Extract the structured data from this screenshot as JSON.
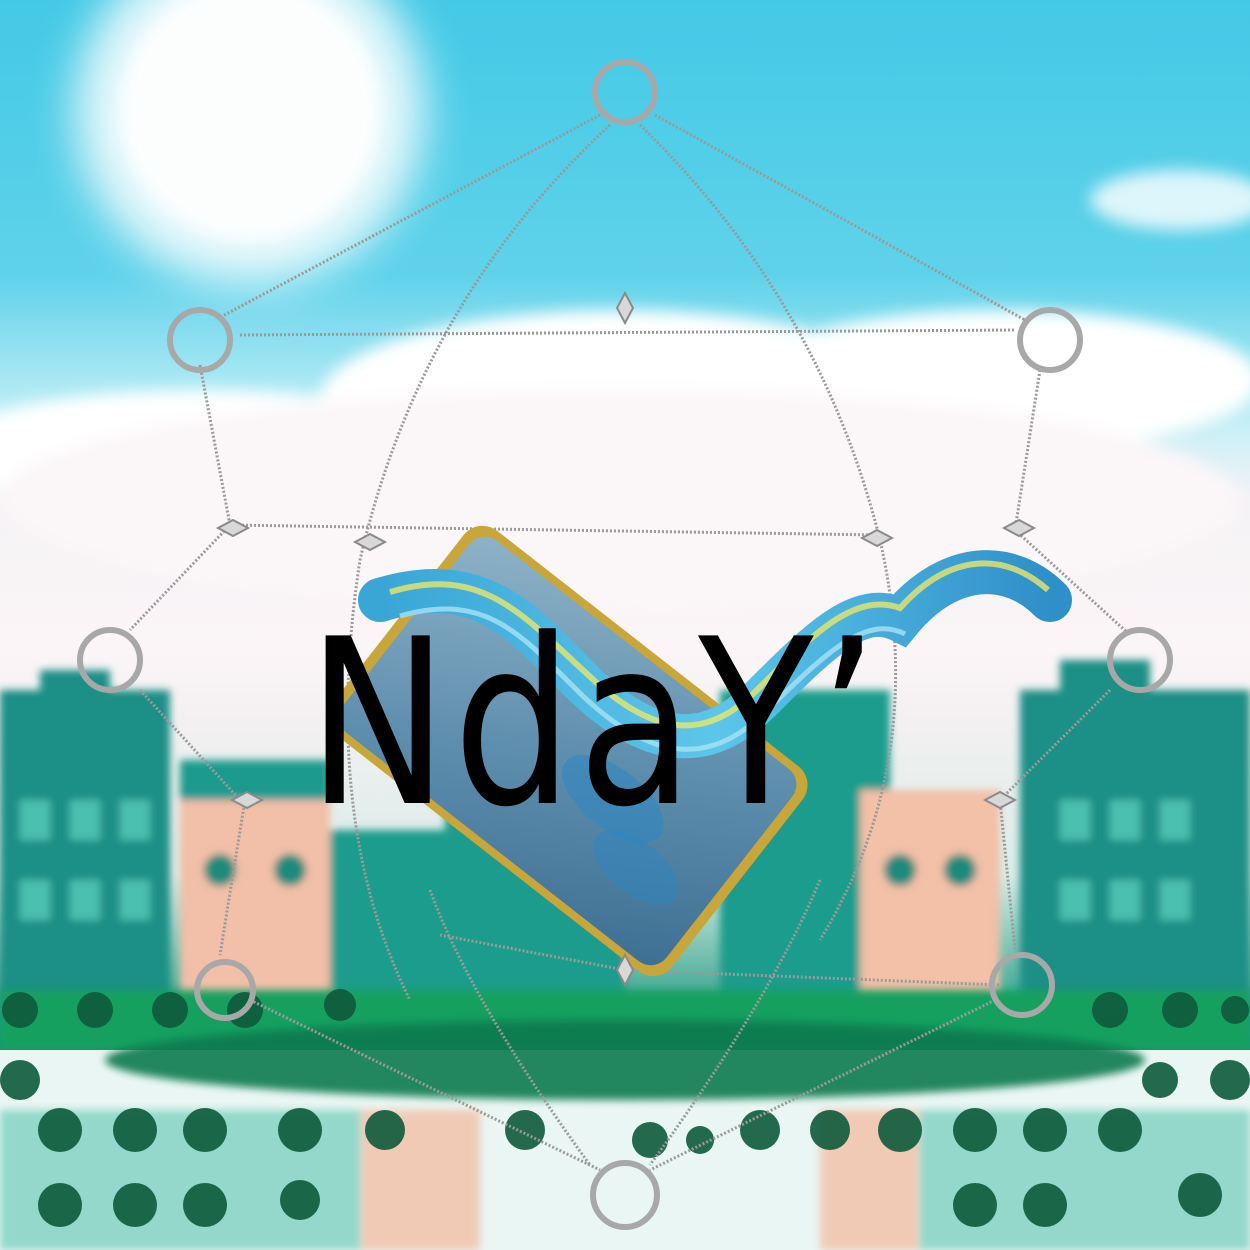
{
  "logo": {
    "text": "NdaY’"
  },
  "colors": {
    "sky": "#43c9e6",
    "cloud": "#fbf5f7",
    "building_teal": "#1a9c8c",
    "building_peach": "#f3c0a8",
    "grass": "#0f8a55",
    "network_line": "#9a9a9a",
    "text": "#000000"
  },
  "icons": {
    "phone": "smartphone-icon",
    "wave": "ribbon-wave"
  }
}
